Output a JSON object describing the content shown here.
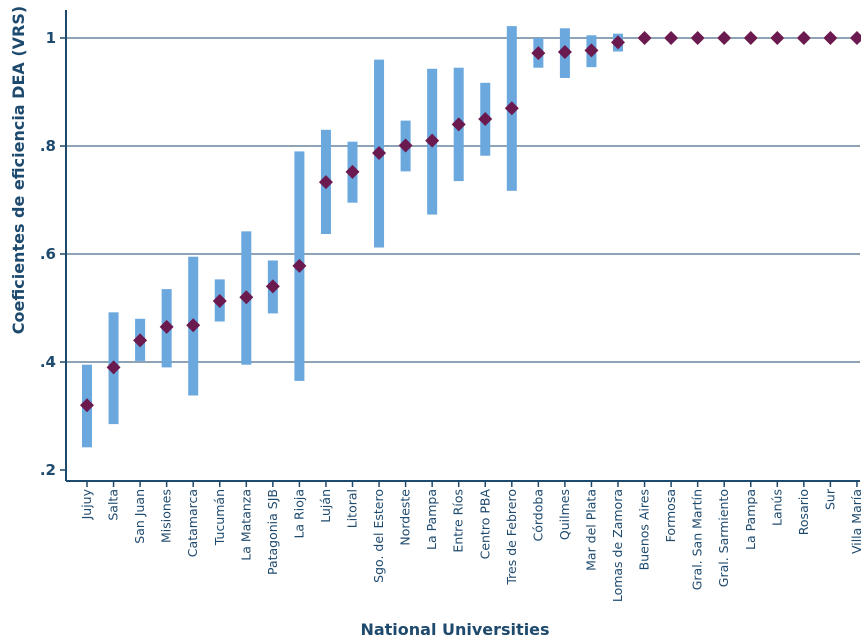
{
  "chart_data": {
    "type": "scatter",
    "xlabel": "National Universities",
    "ylabel": "Coeficientes de eficiencia DEA (VRS)",
    "ylim": [
      0.2,
      1.05
    ],
    "yticks": [
      0.2,
      0.4,
      0.6,
      0.8,
      1.0
    ],
    "ytick_labels": [
      ".2",
      ".4",
      ".6",
      ".8",
      "1"
    ],
    "grid": true,
    "categories": [
      "Jujuy",
      "Salta",
      "San Juan",
      "Misiones",
      "Catamarca",
      "Tucumán",
      "La Matanza",
      "Patagonia SJB",
      "La Rioja",
      "Luján",
      "Litoral",
      "Sgo. del Estero",
      "Nordeste",
      "La Pampa",
      "Entre Ríos",
      "Centro PBA",
      "Tres de Febrero",
      "Córdoba",
      "Quilmes",
      "Mar del Plata",
      "Lomas de Zamora",
      "Buenos Aires",
      "Formosa",
      "Gral. San Martín",
      "Gral. Sarmiento",
      "La Pampa",
      "Lanús",
      "Rosario",
      "Sur",
      "Villa María"
    ],
    "series": [
      {
        "values": [
          0.32,
          0.39,
          0.44,
          0.465,
          0.468,
          0.513,
          0.52,
          0.54,
          0.578,
          0.733,
          0.752,
          0.787,
          0.801,
          0.81,
          0.84,
          0.85,
          0.87,
          0.972,
          0.974,
          0.977,
          0.992,
          1.0,
          1.0,
          1.0,
          1.0,
          1.0,
          1.0,
          1.0,
          1.0,
          1.0
        ],
        "lower": [
          0.242,
          0.285,
          0.402,
          0.39,
          0.338,
          0.475,
          0.395,
          0.49,
          0.365,
          0.637,
          0.695,
          0.612,
          0.753,
          0.673,
          0.735,
          0.782,
          0.717,
          0.945,
          0.926,
          0.946,
          0.975,
          1.0,
          1.0,
          1.0,
          1.0,
          1.0,
          1.0,
          1.0,
          1.0,
          1.0
        ],
        "upper": [
          0.395,
          0.492,
          0.48,
          0.535,
          0.595,
          0.553,
          0.642,
          0.588,
          0.79,
          0.83,
          0.808,
          0.96,
          0.847,
          0.943,
          0.945,
          0.917,
          1.022,
          1.0,
          1.018,
          1.005,
          1.008,
          1.0,
          1.0,
          1.0,
          1.0,
          1.0,
          1.0,
          1.0,
          1.0,
          1.0
        ]
      }
    ],
    "colors": {
      "marker": "#6b1a4f",
      "interval": "#6aa8de",
      "axis": "#1e4a6e"
    }
  }
}
